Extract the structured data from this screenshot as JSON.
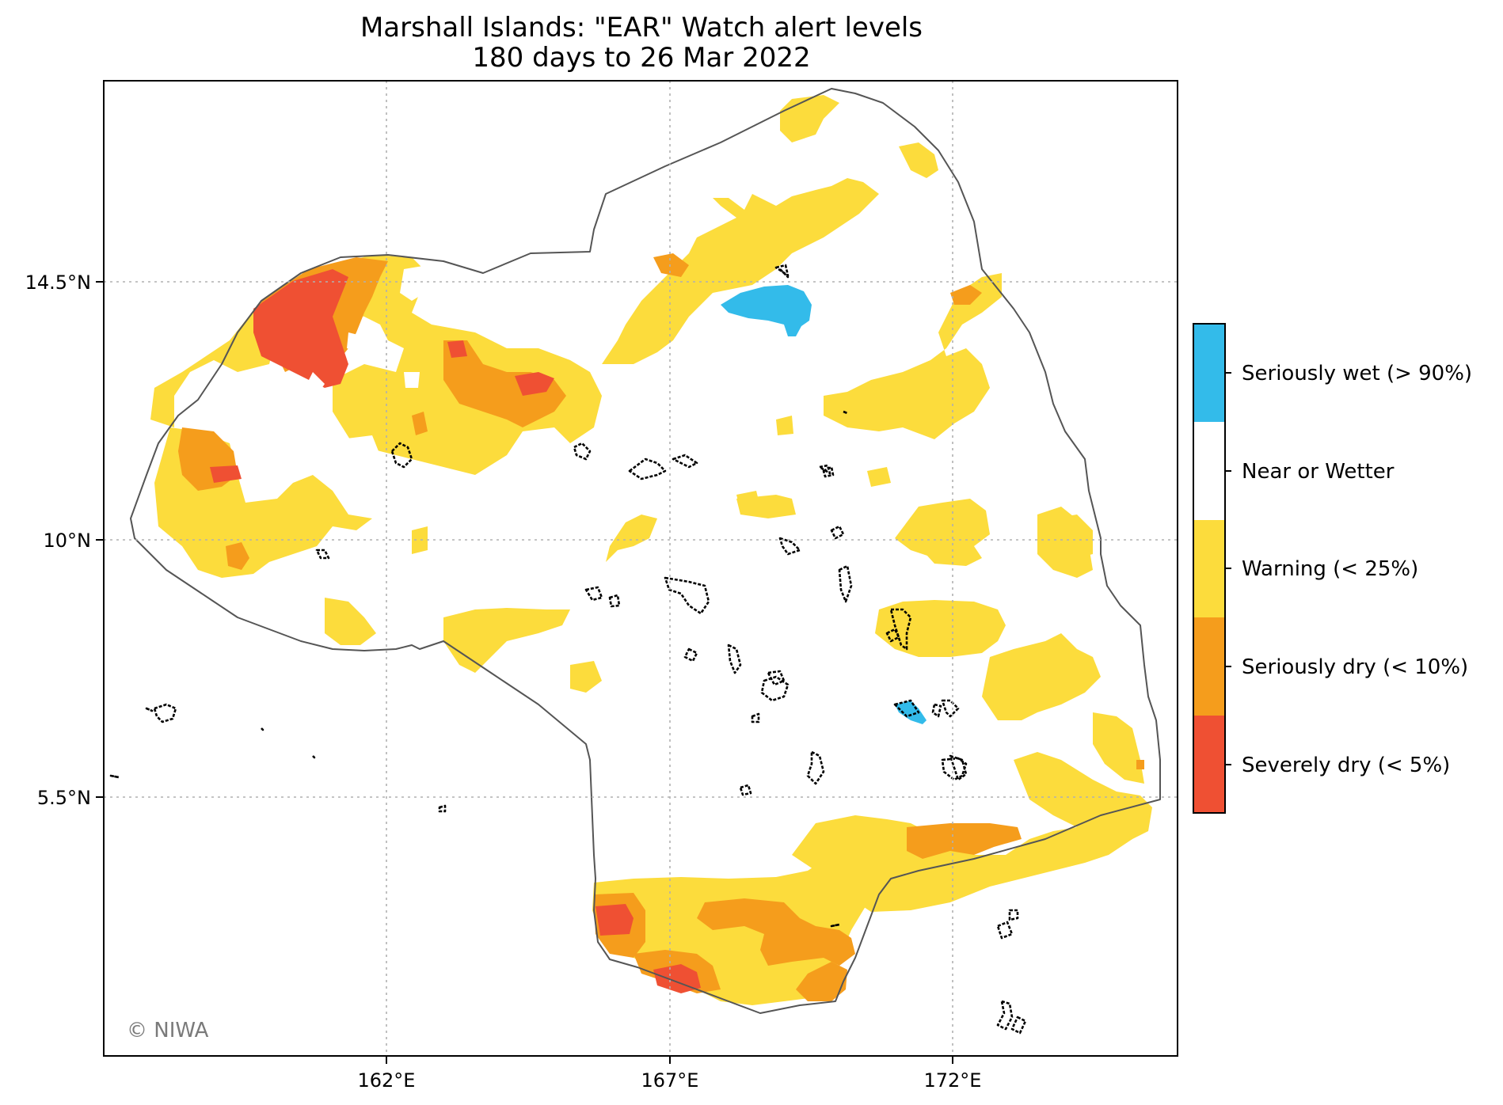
{
  "title": {
    "line1": "Marshall Islands: \"EAR\" Watch alert levels",
    "line2": "180 days to 26 Mar 2022"
  },
  "credit": "© NIWA",
  "axes": {
    "x_ticks": [
      {
        "value": 162,
        "label": "162°E"
      },
      {
        "value": 167,
        "label": "167°E"
      },
      {
        "value": 172,
        "label": "172°E"
      }
    ],
    "y_ticks": [
      {
        "value": 14.5,
        "label": "14.5°N"
      },
      {
        "value": 10,
        "label": "10°N"
      },
      {
        "value": 5.5,
        "label": "5.5°N"
      }
    ],
    "grid": "dotted"
  },
  "legend": {
    "placement": "right colorbar",
    "levels": [
      {
        "label": "Seriously wet (> 90%)",
        "color": "#33bbea"
      },
      {
        "label": "Near or Wetter",
        "color": "#ffffff"
      },
      {
        "label": "Warning (< 25%)",
        "color": "#fcdc3c"
      },
      {
        "label": "Seriously dry (< 10%)",
        "color": "#f59d1c"
      },
      {
        "label": "Severely dry (< 5%)",
        "color": "#ef5033"
      }
    ]
  },
  "colors": {
    "seriously_wet": "#33bbea",
    "near_or_wetter": "#ffffff",
    "warning": "#fcdc3c",
    "seriously_dry": "#f59d1c",
    "severely_dry": "#ef5033",
    "eez_outline": "#555555",
    "atoll_outline": "#000000",
    "gridline": "#b0b0b0"
  }
}
